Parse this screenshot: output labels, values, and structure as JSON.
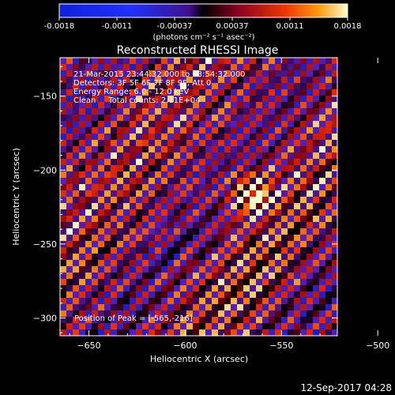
{
  "chart_data": {
    "type": "heatmap",
    "title": "Reconstructed RHESSI Image",
    "xlabel": "Heliocentric X (arcsec)",
    "ylabel": "Heliocentric Y (arcsec)",
    "xlim": [
      -665,
      -521
    ],
    "ylim": [
      -312,
      -124
    ],
    "xticks": [
      -650,
      -600,
      -550,
      -500
    ],
    "yticks": [
      -150,
      -200,
      -250,
      -300
    ],
    "colorbar": {
      "range": [
        -0.0018,
        0.0018
      ],
      "ticks": [
        "-0.0018",
        "-0.0011",
        "-0.00037",
        "0.00037",
        "0.0011",
        "0.0018"
      ],
      "unit_label": "(photons cm⁻² s⁻¹ asec⁻²)"
    },
    "annotations": [
      "21-Mar-2015 23:44:32.000 to 23:54:32.000",
      "Detectors: 3F 5F 6F 7F 8F 9F, Att 0",
      "Energy Range: 6.0 - 12.0 keV",
      "Clean     Total counts: 2.11E+04"
    ],
    "peak_label": "Position of Peak = [-565,-216]",
    "peak": {
      "x": -565,
      "y": -216
    },
    "timestamp": "12-Sep-2017 04:28"
  }
}
